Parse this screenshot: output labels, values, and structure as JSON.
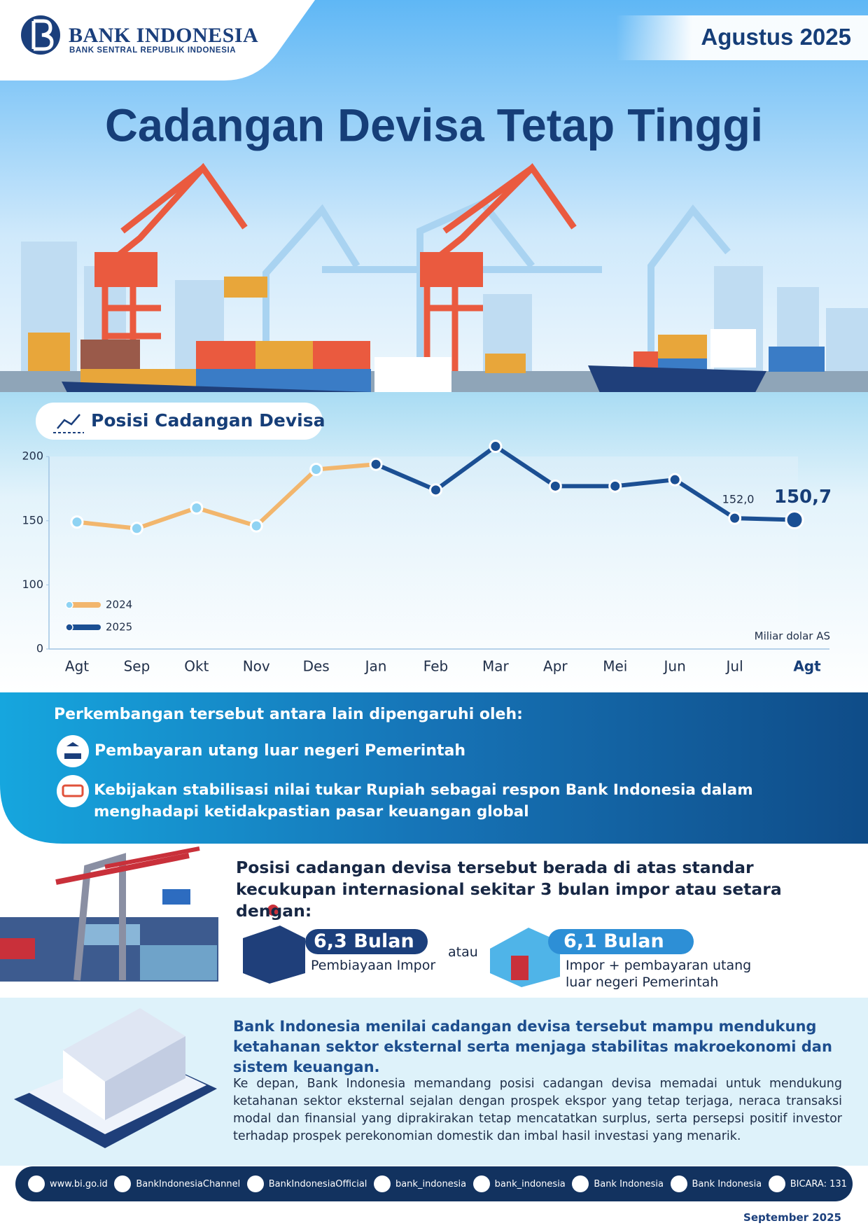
{
  "header": {
    "logo_title": "BANK INDONESIA",
    "logo_subtitle": "BANK SENTRAL REPUBLIK INDONESIA",
    "period": "Agustus 2025"
  },
  "title": "Cadangan Devisa Tetap Tinggi",
  "chart_data": {
    "type": "line",
    "title": "Posisi Cadangan Devisa",
    "unit_label": "Miliar dolar AS",
    "categories": [
      "Agt",
      "Sep",
      "Okt",
      "Nov",
      "Des",
      "Jan",
      "Feb",
      "Mar",
      "Apr",
      "Mei",
      "Jun",
      "Jul",
      "Agt"
    ],
    "series": [
      {
        "name": "2024",
        "color": "#f2b66d",
        "values": [
          149,
          144,
          160,
          146,
          190,
          null,
          null,
          null,
          null,
          null,
          null,
          null,
          null
        ]
      },
      {
        "name": "2025",
        "color": "#1b4f93",
        "values": [
          null,
          null,
          null,
          null,
          null,
          194,
          174,
          208,
          177,
          177,
          182,
          152.0,
          150.7
        ],
        "value_labels": [
          null,
          null,
          null,
          null,
          null,
          null,
          null,
          null,
          null,
          null,
          null,
          "152,0",
          "150,7"
        ]
      }
    ],
    "ylim": [
      0,
      200
    ],
    "yticks": [
      0,
      100,
      150,
      200
    ],
    "grid": false,
    "legend": "lower left"
  },
  "factors": {
    "heading": "Perkembangan tersebut antara lain dipengaruhi oleh:",
    "items": [
      "Pembayaran utang luar negeri Pemerintah",
      "Kebijakan stabilisasi nilai tukar Rupiah sebagai respon Bank Indonesia dalam menghadapi ketidakpastian pasar keuangan global"
    ]
  },
  "adequacy": {
    "heading": "Posisi cadangan devisa tersebut berada di atas standar kecukupan internasional sekitar 3 bulan impor atau setara dengan:",
    "items": [
      {
        "value": "6,3 Bulan",
        "label": "Pembiayaan Impor"
      },
      {
        "value": "6,1 Bulan",
        "label": "Impor + pembayaran utang luar negeri Pemerintah"
      }
    ],
    "separator": "atau"
  },
  "assessment": {
    "heading": "Bank Indonesia menilai cadangan devisa tersebut mampu mendukung ketahanan sektor eksternal serta menjaga stabilitas makroekonomi dan sistem keuangan.",
    "body": "Ke depan, Bank Indonesia memandang posisi cadangan devisa memadai untuk mendukung ketahanan sektor eksternal sejalan dengan prospek ekspor yang tetap terjaga, neraca transaksi modal dan finansial yang diprakirakan tetap mencatatkan surplus, serta persepsi positif investor terhadap prospek perekonomian domestik dan imbal hasil investasi yang menarik."
  },
  "footer": {
    "links": [
      "www.bi.go.id",
      "BankIndonesiaChannel",
      "BankIndonesiaOfficial",
      "bank_indonesia",
      "bank_indonesia",
      "Bank Indonesia",
      "Bank Indonesia",
      "BICARA: 131"
    ],
    "date": "September 2025"
  }
}
